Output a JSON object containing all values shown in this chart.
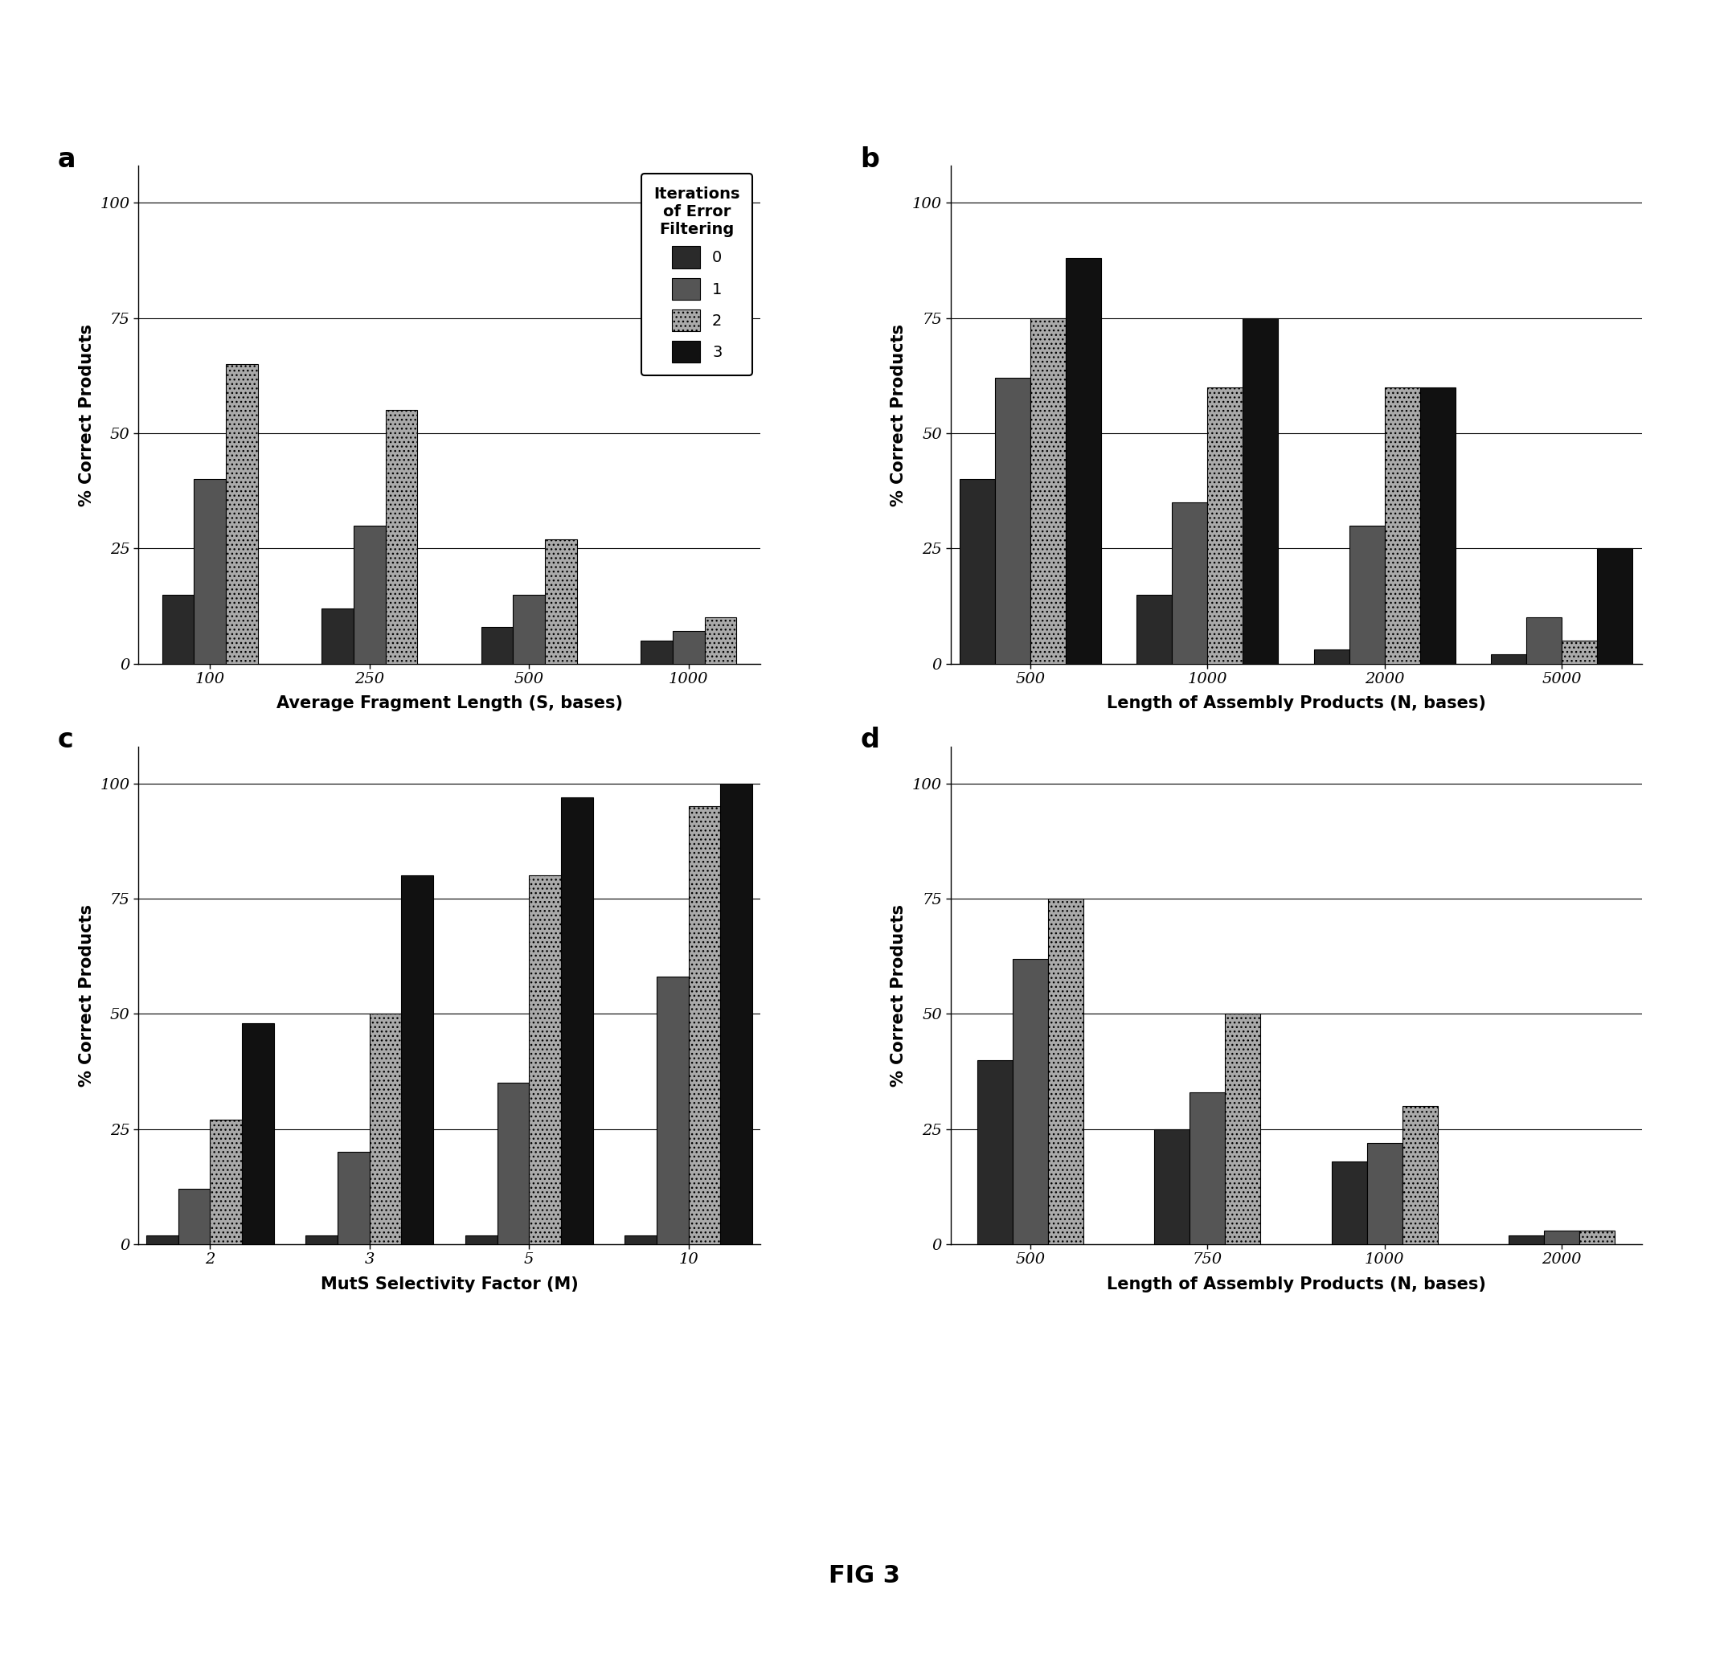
{
  "panel_a": {
    "categories": [
      "100",
      "250",
      "500",
      "1000"
    ],
    "xlabel": "Average Fragment Length (S, bases)",
    "ylabel": "% Correct Products",
    "yticks": [
      0,
      25,
      50,
      75,
      100
    ],
    "ylim": [
      0,
      108
    ],
    "iterations_shown": [
      "0",
      "1",
      "2"
    ],
    "data": {
      "0": [
        15,
        12,
        8,
        5
      ],
      "1": [
        40,
        30,
        15,
        7
      ],
      "2": [
        65,
        55,
        27,
        10
      ],
      "3": [
        0,
        0,
        0,
        0
      ]
    },
    "label": "a"
  },
  "panel_b": {
    "categories": [
      "500",
      "1000",
      "2000",
      "5000"
    ],
    "xlabel": "Length of Assembly Products (N, bases)",
    "ylabel": "% Correct Products",
    "yticks": [
      0,
      25,
      50,
      75,
      100
    ],
    "ylim": [
      0,
      108
    ],
    "iterations_shown": [
      "0",
      "1",
      "2",
      "3"
    ],
    "data": {
      "0": [
        40,
        15,
        3,
        2
      ],
      "1": [
        62,
        35,
        30,
        10
      ],
      "2": [
        75,
        60,
        60,
        5
      ],
      "3": [
        88,
        75,
        60,
        25
      ]
    },
    "label": "b"
  },
  "panel_c": {
    "categories": [
      "2",
      "3",
      "5",
      "10"
    ],
    "xlabel": "MutS Selectivity Factor (M)",
    "ylabel": "% Correct Products",
    "yticks": [
      0,
      25,
      50,
      75,
      100
    ],
    "ylim": [
      0,
      108
    ],
    "iterations_shown": [
      "0",
      "1",
      "2",
      "3"
    ],
    "data": {
      "0": [
        2,
        2,
        2,
        2
      ],
      "1": [
        12,
        20,
        35,
        58
      ],
      "2": [
        27,
        50,
        80,
        95
      ],
      "3": [
        48,
        80,
        97,
        100
      ]
    },
    "label": "c"
  },
  "panel_d": {
    "categories": [
      "500",
      "750",
      "1000",
      "2000"
    ],
    "xlabel": "Length of Assembly Products (N, bases)",
    "ylabel": "% Correct Products",
    "yticks": [
      0,
      25,
      50,
      75,
      100
    ],
    "ylim": [
      0,
      108
    ],
    "iterations_shown": [
      "0",
      "1",
      "2"
    ],
    "data": {
      "0": [
        40,
        25,
        18,
        2
      ],
      "1": [
        62,
        33,
        22,
        3
      ],
      "2": [
        75,
        50,
        30,
        3
      ],
      "3": [
        0,
        0,
        0,
        0
      ]
    },
    "label": "d"
  },
  "legend": {
    "title": "Iterations\nof Error\nFiltering",
    "entries": [
      "0",
      "1",
      "2",
      "3"
    ]
  },
  "bar_colors": {
    "0": "#2a2a2a",
    "1": "#555555",
    "2": "#aaaaaa",
    "3": "#111111"
  },
  "bar_hatches": {
    "0": "",
    "1": "",
    "2": "...",
    "3": ""
  },
  "figure_label": "FIG 3",
  "background_color": "#ffffff"
}
